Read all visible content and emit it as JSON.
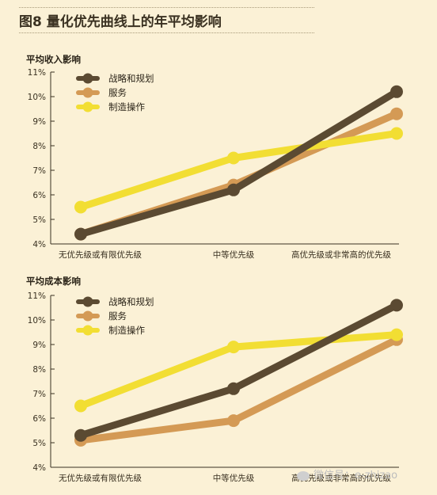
{
  "figure": {
    "title": "图8 量化优先曲线上的年平均影响"
  },
  "colors": {
    "strategy": "#5b4a32",
    "service": "#d49a55",
    "manufacturing": "#f2de33"
  },
  "watermark": {
    "text": "微信号：e-zhizao"
  },
  "chart_data": [
    {
      "type": "line",
      "title": "平均收入影响",
      "categories": [
        "无优先级或有限优先级",
        "中等优先级",
        "高优先级或非常高的优先级"
      ],
      "y_ticks": [
        "4%",
        "5%",
        "6%",
        "7%",
        "8%",
        "9%",
        "10%",
        "11%"
      ],
      "ylim": [
        4,
        11
      ],
      "legend_position": "top-left",
      "grid": false,
      "series": [
        {
          "name": "战略和规划",
          "values": [
            4.4,
            6.2,
            10.2
          ]
        },
        {
          "name": "服务",
          "values": [
            4.4,
            6.4,
            9.3
          ]
        },
        {
          "name": "制造操作",
          "values": [
            5.5,
            7.5,
            8.5
          ]
        }
      ]
    },
    {
      "type": "line",
      "title": "平均成本影响",
      "categories": [
        "无优先级或有限优先级",
        "中等优先级",
        "高优先级或非常高的优先级"
      ],
      "y_ticks": [
        "4%",
        "5%",
        "6%",
        "7%",
        "8%",
        "9%",
        "10%",
        "11%"
      ],
      "ylim": [
        4,
        11
      ],
      "legend_position": "top-left",
      "grid": false,
      "series": [
        {
          "name": "战略和规划",
          "values": [
            5.3,
            7.2,
            10.6
          ]
        },
        {
          "name": "服务",
          "values": [
            5.1,
            5.9,
            9.2
          ]
        },
        {
          "name": "制造操作",
          "values": [
            6.5,
            8.9,
            9.4
          ]
        }
      ]
    }
  ]
}
